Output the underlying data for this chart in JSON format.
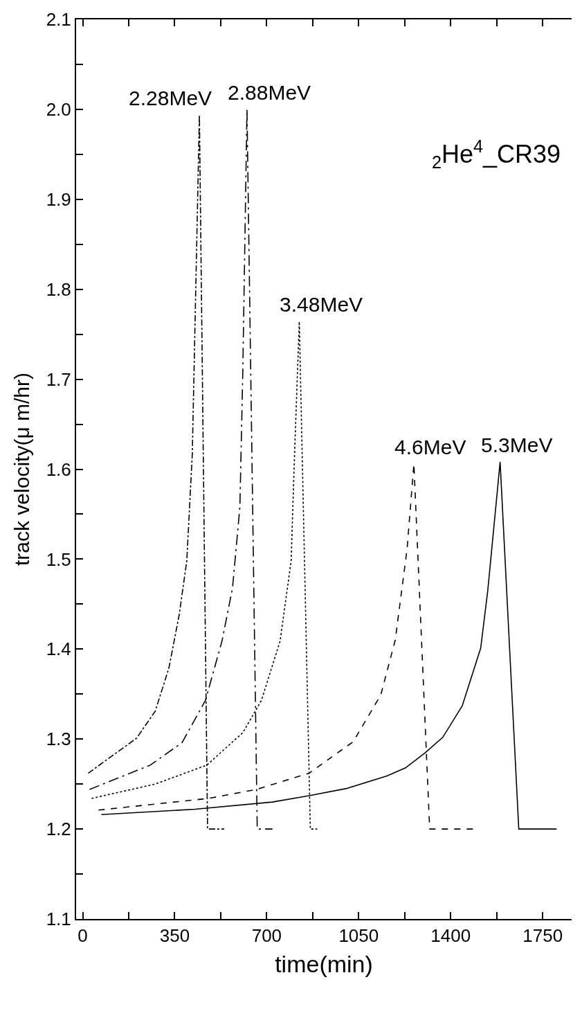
{
  "chart_data": {
    "type": "line",
    "xlabel": "time(min)",
    "ylabel": "track velocity(μ m/hr)",
    "xlim": [
      -25,
      1860
    ],
    "ylim": [
      1.1,
      2.1
    ],
    "xticks": [
      0,
      {
        "value": 175,
        "label": null
      },
      350,
      {
        "value": 525,
        "label": null
      },
      700,
      {
        "value": 875,
        "label": null
      },
      1050,
      {
        "value": 1225,
        "label": null
      },
      1400,
      {
        "value": 1575,
        "label": null
      },
      1750
    ],
    "yticks": [
      1.1,
      {
        "value": 1.15,
        "label": null
      },
      1.2,
      {
        "value": 1.25,
        "label": null
      },
      1.3,
      {
        "value": 1.35,
        "label": null
      },
      1.4,
      {
        "value": 1.45,
        "label": null
      },
      1.5,
      {
        "value": 1.55,
        "label": null
      },
      1.6,
      {
        "value": 1.65,
        "label": null
      },
      1.7,
      {
        "value": 1.75,
        "label": null
      },
      1.8,
      {
        "value": 1.85,
        "label": null
      },
      1.9,
      {
        "value": 1.95,
        "label": null
      },
      {
        "value": 2.0,
        "label": "2.0"
      },
      {
        "value": 2.05,
        "label": null
      },
      2.1
    ],
    "marker": "none",
    "series": [
      {
        "color": "#000000",
        "line_style": "dashdot",
        "x": [
          21,
          205,
          276,
          328,
          367,
          396,
          417,
          444,
          475,
          538
        ],
        "values": [
          1.262,
          1.301,
          1.331,
          1.379,
          1.438,
          1.498,
          1.617,
          1.994,
          1.2,
          1.2
        ]
      },
      {
        "color": "#000000",
        "line_style": "longdashdot",
        "x": [
          26,
          257,
          378,
          467,
          530,
          570,
          598,
          609,
          625,
          664,
          722
        ],
        "values": [
          1.244,
          1.271,
          1.296,
          1.343,
          1.409,
          1.468,
          1.558,
          1.707,
          2.0,
          1.2,
          1.2
        ]
      },
      {
        "color": "#000000",
        "line_style": "dotted",
        "x": [
          34,
          276,
          472,
          609,
          680,
          751,
          793,
          806,
          824,
          866,
          892
        ],
        "values": [
          1.234,
          1.25,
          1.271,
          1.307,
          1.343,
          1.409,
          1.498,
          1.617,
          1.764,
          1.2,
          1.2
        ]
      },
      {
        "color": "#000000",
        "line_style": "dashed",
        "x": [
          60,
          478,
          661,
          861,
          1029,
          1134,
          1189,
          1234,
          1260,
          1320,
          1496
        ],
        "values": [
          1.221,
          1.234,
          1.244,
          1.262,
          1.297,
          1.349,
          1.41,
          1.511,
          1.606,
          1.2,
          1.2
        ]
      },
      {
        "color": "#000000",
        "line_style": "solid",
        "x": [
          71,
          428,
          722,
          861,
          1003,
          1157,
          1228,
          1304,
          1370,
          1444,
          1514,
          1541,
          1588,
          1659,
          1803
        ],
        "values": [
          1.216,
          1.222,
          1.23,
          1.237,
          1.245,
          1.259,
          1.268,
          1.285,
          1.302,
          1.337,
          1.401,
          1.465,
          1.608,
          1.2,
          1.2
        ]
      }
    ],
    "annotations": [
      {
        "text": "2.28MeV",
        "x": 444,
        "y": 1.994
      },
      {
        "text": "2.88MeV",
        "x": 625,
        "y": 2.0
      },
      {
        "text": "3.48MeV",
        "x": 824,
        "y": 1.764
      },
      {
        "text": "4.6MeV",
        "x": 1260,
        "y": 1.606
      },
      {
        "text": "5.3MeV",
        "x": 1588,
        "y": 1.608
      },
      "$_{2}$He$^{4}$_CR39"
    ]
  }
}
